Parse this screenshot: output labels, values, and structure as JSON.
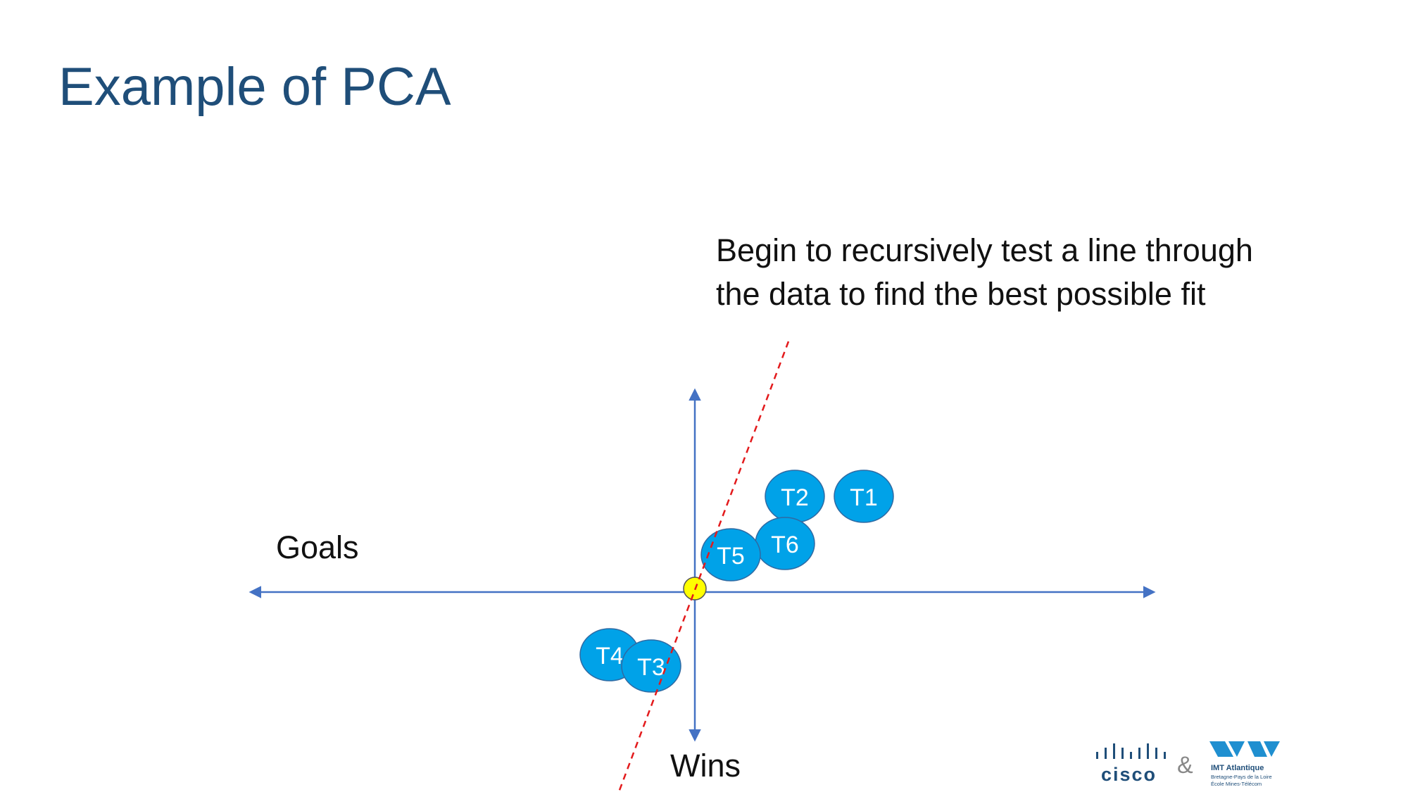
{
  "title": "Example of PCA",
  "caption": {
    "line1": "Begin to recursively test a line through",
    "line2": "the data to find the best possible fit"
  },
  "axes": {
    "horizontal_label": "Goals",
    "vertical_label": "Wins"
  },
  "nodes": [
    {
      "label": "T1"
    },
    {
      "label": "T2"
    },
    {
      "label": "T3"
    },
    {
      "label": "T4"
    },
    {
      "label": "T5"
    },
    {
      "label": "T6"
    }
  ],
  "colors": {
    "title": "#1f4e79",
    "axis": "#4472c4",
    "node_fill": "#00a2e8",
    "node_stroke": "#2f6aa3",
    "fit_line": "#e31a1c",
    "origin_fill": "#ffff00"
  },
  "logos": {
    "cisco": "cisco",
    "ampersand": "&",
    "imt_name": "IMT Atlantique",
    "imt_line1": "Bretagne-Pays de la Loire",
    "imt_line2": "École Mines-Télécom"
  }
}
